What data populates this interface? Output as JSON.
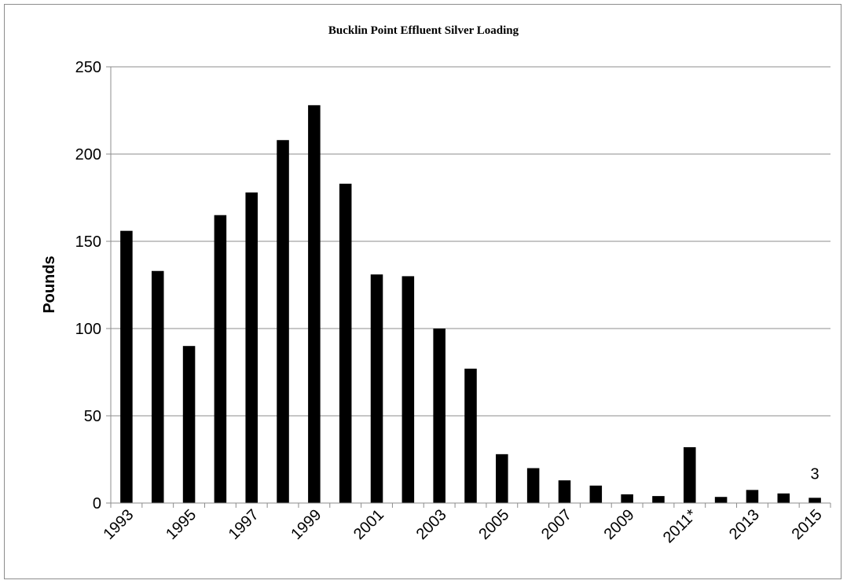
{
  "chart_data": {
    "type": "bar",
    "title": "Bucklin Point Effluent Silver Loading",
    "xlabel": "",
    "ylabel": "Pounds",
    "ylim": [
      0,
      250
    ],
    "yticks": [
      0,
      50,
      100,
      150,
      200,
      250
    ],
    "grid": true,
    "legend": "none",
    "bar_color": "#000000",
    "categories": [
      "1993",
      "1994",
      "1995",
      "1996",
      "1997",
      "1998",
      "1999",
      "2000",
      "2001",
      "2002",
      "2003",
      "2004",
      "2005",
      "2006",
      "2007",
      "2008",
      "2009",
      "2010",
      "2011*",
      "2012",
      "2013",
      "2014",
      "2015"
    ],
    "tick_labels_shown": [
      "1993",
      "1995",
      "1997",
      "1999",
      "2001",
      "2003",
      "2005",
      "2007",
      "2009",
      "2011*",
      "2013",
      "2015"
    ],
    "values": [
      156,
      133,
      90,
      165,
      178,
      208,
      228,
      183,
      131,
      130,
      100,
      77,
      28,
      20,
      13,
      10,
      5,
      4,
      32,
      3.5,
      7.5,
      5.5,
      3
    ],
    "data_labels": [
      {
        "category": "2015",
        "text": "3"
      }
    ]
  }
}
